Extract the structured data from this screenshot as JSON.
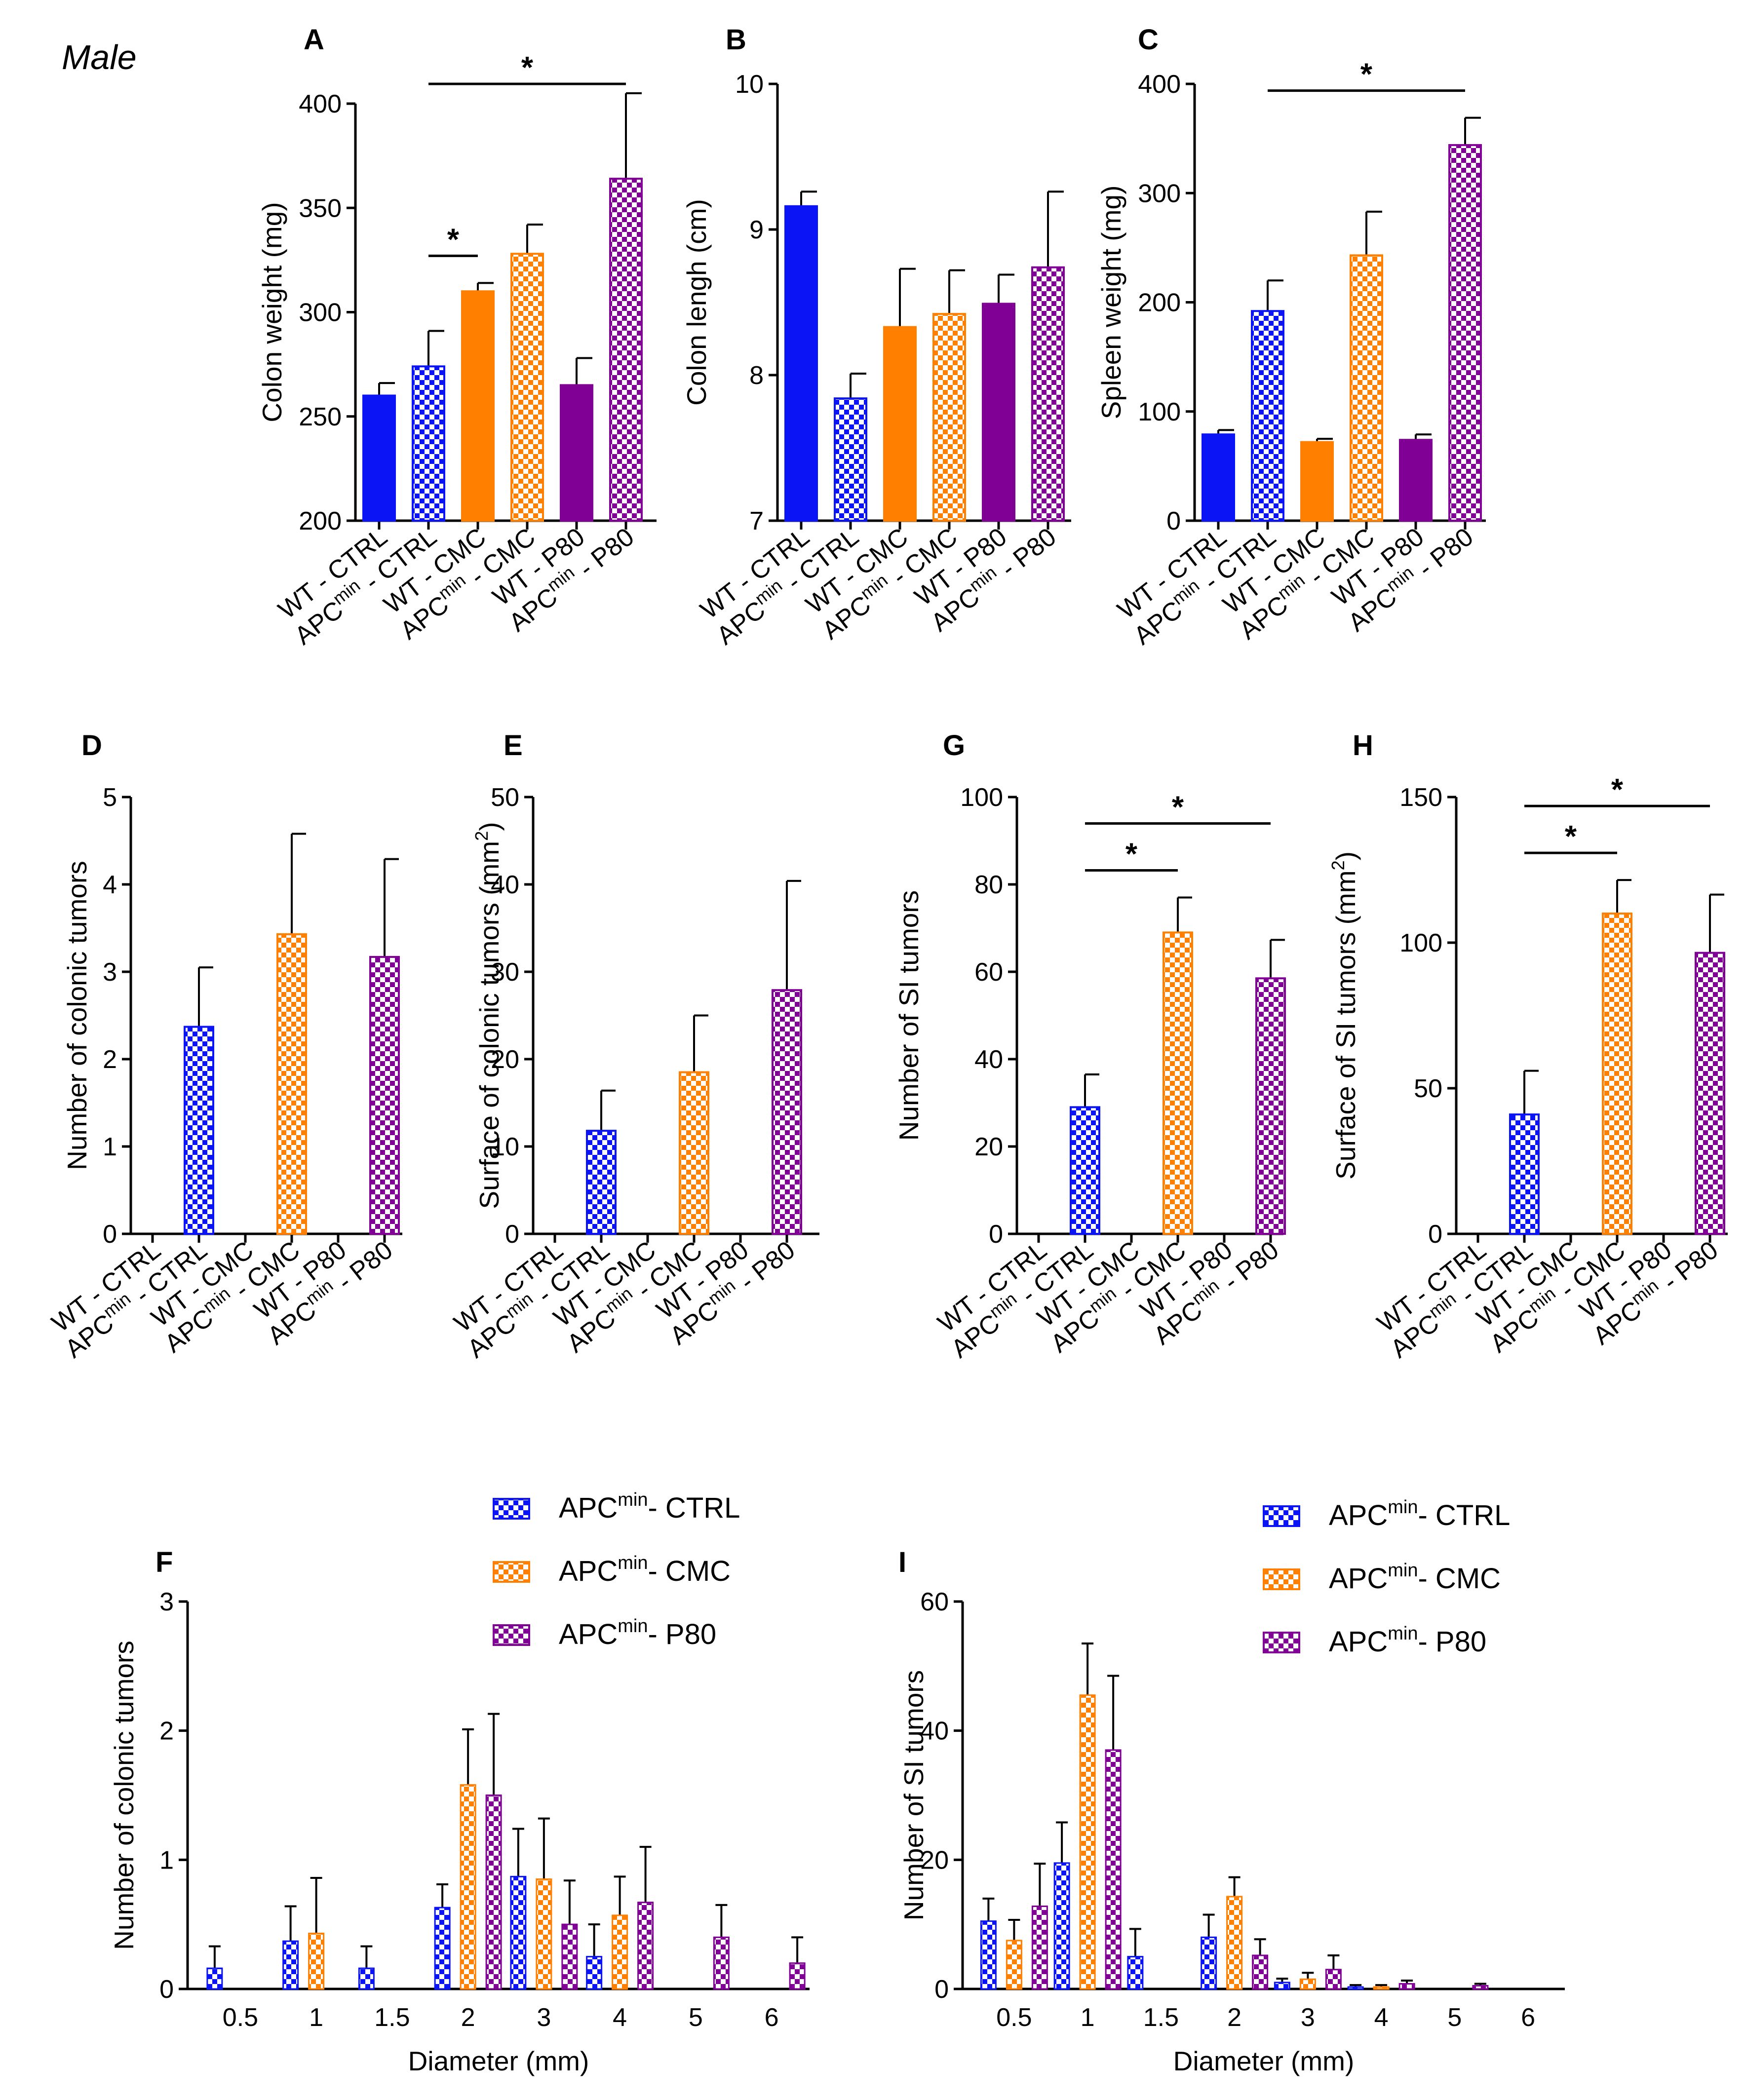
{
  "sex_label": "Male",
  "colors": {
    "blue": "#0a14f5",
    "orange": "#ff7f00",
    "purple": "#800096",
    "axis": "#000000"
  },
  "chart_data": [
    {
      "id": "A",
      "type": "bar",
      "letter": "A",
      "ylabel": "Colon weight (mg)",
      "ylim": [
        200,
        400
      ],
      "yticks": [
        200,
        250,
        300,
        350,
        400
      ],
      "categories": [
        "WT - CTRL",
        "APCmin - CTRL",
        "WT - CMC",
        "APCmin - CMC",
        "WT - P80",
        "APCmin - P80"
      ],
      "values": [
        260,
        274,
        310,
        328,
        265,
        364
      ],
      "errors": [
        6,
        17,
        4,
        14,
        13,
        41
      ],
      "significance": [
        {
          "from": 1,
          "to": 2,
          "label": "*"
        },
        {
          "from": 1,
          "to": 5,
          "label": "*"
        }
      ]
    },
    {
      "id": "B",
      "type": "bar",
      "letter": "B",
      "ylabel": "Colon lengh (cm)",
      "ylim": [
        7,
        10
      ],
      "yticks": [
        7,
        8,
        9,
        10
      ],
      "categories": [
        "WT - CTRL",
        "APCmin - CTRL",
        "WT - CMC",
        "APCmin - CMC",
        "WT - P80",
        "APCmin - P80"
      ],
      "values": [
        9.16,
        7.84,
        8.33,
        8.42,
        8.49,
        8.74
      ],
      "errors": [
        0.1,
        0.17,
        0.4,
        0.3,
        0.2,
        0.52
      ],
      "significance": []
    },
    {
      "id": "C",
      "type": "bar",
      "letter": "C",
      "ylabel": "Spleen weight (mg)",
      "ylim": [
        0,
        400
      ],
      "yticks": [
        0,
        100,
        200,
        300,
        400
      ],
      "categories": [
        "WT - CTRL",
        "APCmin - CTRL",
        "WT - CMC",
        "APCmin - CMC",
        "WT - P80",
        "APCmin - P80"
      ],
      "values": [
        79,
        192,
        72,
        243,
        74,
        344
      ],
      "errors": [
        4,
        28,
        3,
        40,
        5,
        25
      ],
      "significance": [
        {
          "from": 1,
          "to": 5,
          "label": "*"
        }
      ]
    },
    {
      "id": "D",
      "type": "bar",
      "letter": "D",
      "ylabel": "Number of colonic tumors",
      "ylim": [
        0,
        5
      ],
      "yticks": [
        0,
        1,
        2,
        3,
        4,
        5
      ],
      "categories": [
        "WT - CTRL",
        "APCmin - CTRL",
        "WT - CMC",
        "APCmin - CMC",
        "WT - P80",
        "APCmin - P80"
      ],
      "values": [
        null,
        2.37,
        null,
        3.43,
        null,
        3.17
      ],
      "errors": [
        null,
        0.68,
        null,
        1.15,
        null,
        1.12
      ],
      "significance": []
    },
    {
      "id": "E",
      "type": "bar",
      "letter": "E",
      "ylabel": "Surface of colonic tumors (mm2)",
      "ylabel_main": "Surface of colonic tumors (mm",
      "ylabel_sup": "2",
      "ylabel_end": ")",
      "ylim": [
        0,
        50
      ],
      "yticks": [
        0,
        10,
        20,
        30,
        40,
        50
      ],
      "categories": [
        "WT - CTRL",
        "APCmin - CTRL",
        "WT - CMC",
        "APCmin - CMC",
        "WT - P80",
        "APCmin - P80"
      ],
      "values": [
        null,
        11.8,
        null,
        18.5,
        null,
        27.9
      ],
      "errors": [
        null,
        4.6,
        null,
        6.5,
        null,
        12.5
      ],
      "significance": []
    },
    {
      "id": "G",
      "type": "bar",
      "letter": "G",
      "ylabel": "Number of SI tumors",
      "ylim": [
        0,
        100
      ],
      "yticks": [
        0,
        20,
        40,
        60,
        80,
        100
      ],
      "categories": [
        "WT - CTRL",
        "APCmin - CTRL",
        "WT - CMC",
        "APCmin - CMC",
        "WT - P80",
        "APCmin - P80"
      ],
      "values": [
        null,
        29,
        null,
        69,
        null,
        58.5
      ],
      "errors": [
        null,
        7.5,
        null,
        8,
        null,
        8.8
      ],
      "significance": [
        {
          "from": 1,
          "to": 3,
          "label": "*"
        },
        {
          "from": 1,
          "to": 5,
          "label": "*"
        }
      ]
    },
    {
      "id": "H",
      "type": "bar",
      "letter": "H",
      "ylabel": "Surface of SI tumors (mm2)",
      "ylabel_main": "Surface of SI tumors (mm",
      "ylabel_sup": "2",
      "ylabel_end": ")",
      "ylim": [
        0,
        150
      ],
      "yticks": [
        0,
        50,
        100,
        150
      ],
      "categories": [
        "WT - CTRL",
        "APCmin - CTRL",
        "WT - CMC",
        "APCmin - CMC",
        "WT - P80",
        "APCmin - P80"
      ],
      "values": [
        null,
        41,
        null,
        110,
        null,
        96.5
      ],
      "errors": [
        null,
        15,
        null,
        11.5,
        null,
        20
      ],
      "significance": [
        {
          "from": 1,
          "to": 3,
          "label": "*"
        },
        {
          "from": 1,
          "to": 5,
          "label": "*"
        }
      ]
    },
    {
      "id": "F",
      "type": "bar",
      "letter": "F",
      "ylabel": "Number of colonic tumors",
      "xlabel": "Diameter (mm)",
      "ylim": [
        0,
        3
      ],
      "yticks": [
        0,
        1,
        2,
        3
      ],
      "categories": [
        "0.5",
        "1",
        "1.5",
        "2",
        "3",
        "4",
        "5",
        "6"
      ],
      "series": [
        {
          "name": "APCmin- CTRL",
          "values": [
            0.16,
            0.37,
            0.16,
            0.63,
            0.87,
            0.25,
            0,
            0
          ],
          "errors": [
            0.17,
            0.27,
            0.17,
            0.18,
            0.37,
            0.25,
            0,
            0
          ]
        },
        {
          "name": "APCmin- CMC",
          "values": [
            0,
            0.43,
            0,
            1.58,
            0.85,
            0.57,
            0,
            0
          ],
          "errors": [
            0,
            0.43,
            0,
            0.43,
            0.47,
            0.3,
            0,
            0
          ]
        },
        {
          "name": "APCmin- P80",
          "values": [
            0,
            0,
            0,
            1.5,
            0.5,
            0.67,
            0.4,
            0.2
          ],
          "errors": [
            0,
            0,
            0,
            0.63,
            0.34,
            0.43,
            0.25,
            0.2
          ]
        }
      ]
    },
    {
      "id": "I",
      "type": "bar",
      "letter": "I",
      "ylabel": "Number of SI tumors",
      "xlabel": "Diameter (mm)",
      "ylim": [
        0,
        60
      ],
      "yticks": [
        0,
        20,
        40,
        60
      ],
      "categories": [
        "0.5",
        "1",
        "1.5",
        "2",
        "3",
        "4",
        "5",
        "6"
      ],
      "series": [
        {
          "name": "APCmin- CTRL",
          "values": [
            10.5,
            19.5,
            5,
            8,
            1,
            0.3,
            0,
            0
          ],
          "errors": [
            3.5,
            6.3,
            4.3,
            3.5,
            0.6,
            0.3,
            0,
            0
          ]
        },
        {
          "name": "APCmin- CMC",
          "values": [
            7.5,
            45.5,
            0,
            14.3,
            1.5,
            0.3,
            0,
            0
          ],
          "errors": [
            3.2,
            8,
            0,
            3,
            1,
            0.3,
            0,
            0
          ]
        },
        {
          "name": "APCmin- P80",
          "values": [
            12.8,
            37,
            0,
            5.2,
            3,
            0.8,
            0.5,
            0
          ],
          "errors": [
            6.6,
            11.5,
            0,
            2.5,
            2.2,
            0.5,
            0.3,
            0
          ]
        }
      ]
    }
  ]
}
